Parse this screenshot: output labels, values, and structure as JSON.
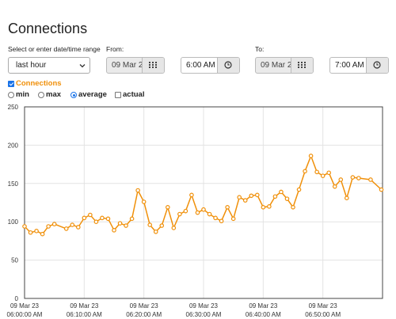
{
  "page": {
    "title": "Connections",
    "range_label": "Select or enter date/time range",
    "range_value": "last hour",
    "from_label": "From:",
    "from_date": "09 Mar 2",
    "from_time": "6:00 AM",
    "to_label": "To:",
    "to_date": "09 Mar 2",
    "to_time": "7:00 AM"
  },
  "controls": {
    "series_label": "Connections",
    "series_checked": true,
    "options": [
      {
        "label": "min",
        "checked": false
      },
      {
        "label": "max",
        "checked": false
      },
      {
        "label": "average",
        "checked": true
      }
    ],
    "actual_label": "actual",
    "actual_checked": false
  },
  "icons": [
    "calendar-icon",
    "clock-icon",
    "chevron-down-icon"
  ],
  "colors": {
    "series": "#f0900a",
    "grid": "#e3e3e3",
    "accent": "#1a73e8"
  },
  "chart_data": {
    "type": "line",
    "title": "",
    "xlabel": "",
    "ylabel": "",
    "ylim": [
      0,
      250
    ],
    "yticks": [
      "0",
      "50",
      "100",
      "150",
      "200",
      "250"
    ],
    "xticks": [
      [
        "09 Mar 23",
        "06:00:00 AM"
      ],
      [
        "09 Mar 23",
        "06:10:00 AM"
      ],
      [
        "09 Mar 23",
        "06:20:00 AM"
      ],
      [
        "09 Mar 23",
        "06:30:00 AM"
      ],
      [
        "09 Mar 23",
        "06:40:00 AM"
      ],
      [
        "09 Mar 23",
        "06:50:00 AM"
      ]
    ],
    "x_minutes_range": [
      0,
      60
    ],
    "grid": true,
    "series": [
      {
        "name": "Connections",
        "x": [
          0,
          1,
          2,
          3,
          4,
          5,
          7,
          8,
          9,
          10,
          11,
          12,
          13,
          14,
          15,
          16,
          17,
          18,
          19,
          20,
          21,
          22,
          23,
          24,
          25,
          26,
          27,
          28,
          29,
          30,
          31,
          32,
          33,
          34,
          35,
          36,
          37,
          38,
          39,
          40,
          41,
          42,
          43,
          44,
          45,
          46,
          47,
          48,
          49,
          50,
          51,
          52,
          53,
          54,
          55,
          56,
          58,
          59.8
        ],
        "values": [
          94,
          86,
          88,
          84,
          94,
          97,
          91,
          96,
          93,
          105,
          109,
          100,
          105,
          104,
          89,
          98,
          95,
          104,
          141,
          126,
          96,
          87,
          95,
          119,
          92,
          110,
          114,
          135,
          112,
          116,
          110,
          105,
          101,
          119,
          104,
          132,
          128,
          134,
          135,
          119,
          120,
          133,
          139,
          130,
          119,
          142,
          166,
          186,
          165,
          160,
          164,
          146,
          155,
          131,
          158,
          157,
          155,
          142
        ]
      }
    ]
  }
}
